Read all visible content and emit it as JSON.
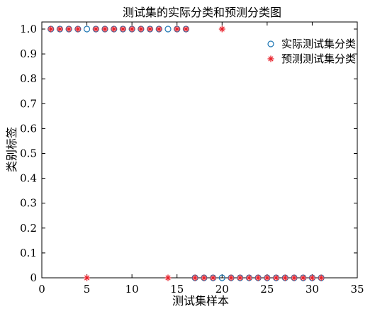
{
  "chart_data": {
    "type": "scatter",
    "title": "测试集的实际分类和预测分类图",
    "xlabel": "测试集样本",
    "ylabel": "类别标签",
    "xlim": [
      0,
      35
    ],
    "ylim": [
      0,
      1
    ],
    "x_ticks": [
      "0",
      "5",
      "10",
      "15",
      "20",
      "25",
      "30",
      "35"
    ],
    "y_ticks": [
      "0",
      "0.1",
      "0.2",
      "0.3",
      "0.4",
      "0.5",
      "0.6",
      "0.7",
      "0.8",
      "0.9",
      "1.0"
    ],
    "grid": false,
    "legend_position": "top-right",
    "series": [
      {
        "name": "实际测试集分类",
        "marker": "circle",
        "color": "#1f77b4",
        "x": [
          1,
          2,
          3,
          4,
          5,
          6,
          7,
          8,
          9,
          10,
          11,
          12,
          13,
          14,
          15,
          16,
          17,
          18,
          19,
          20,
          21,
          22,
          23,
          24,
          25,
          26,
          27,
          28,
          29,
          30,
          31
        ],
        "y": [
          1,
          1,
          1,
          1,
          1,
          1,
          1,
          1,
          1,
          1,
          1,
          1,
          1,
          1,
          1,
          1,
          0,
          0,
          0,
          0,
          0,
          0,
          0,
          0,
          0,
          0,
          0,
          0,
          0,
          0,
          0
        ]
      },
      {
        "name": "预测测试集分类",
        "marker": "asterisk",
        "color": "#e8202a",
        "x": [
          1,
          2,
          3,
          4,
          5,
          6,
          7,
          8,
          9,
          10,
          11,
          12,
          13,
          14,
          15,
          16,
          17,
          18,
          19,
          20,
          21,
          22,
          23,
          24,
          25,
          26,
          27,
          28,
          29,
          30,
          31
        ],
        "y": [
          1,
          1,
          1,
          1,
          0,
          1,
          1,
          1,
          1,
          1,
          1,
          1,
          1,
          0,
          1,
          1,
          0,
          0,
          0,
          1,
          0,
          0,
          0,
          0,
          0,
          0,
          0,
          0,
          0,
          0,
          0
        ]
      }
    ]
  }
}
